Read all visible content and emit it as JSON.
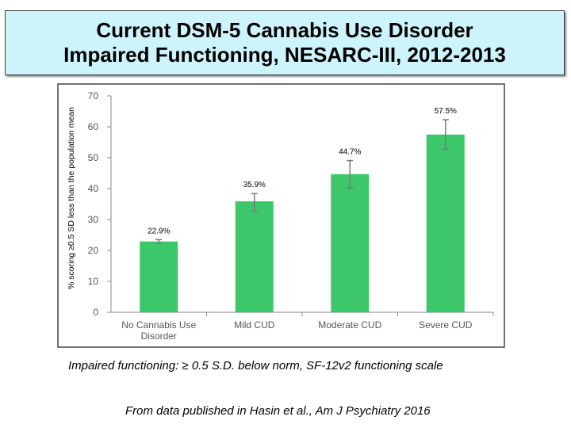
{
  "header": {
    "title_line1": "Current DSM-5 Cannabis Use Disorder",
    "title_line2": "Impaired Functioning, NESARC-III, 2012-2013"
  },
  "chart_data": {
    "type": "bar",
    "ylabel": "% scoring ≥0.5 SD less than the population mean",
    "ylim": [
      0,
      70
    ],
    "yticks": [
      "0",
      "10",
      "20",
      "30",
      "40",
      "50",
      "60",
      "70"
    ],
    "categories": [
      [
        "No Cannabis Use",
        "Disorder"
      ],
      [
        "Mild CUD"
      ],
      [
        "Moderate CUD"
      ],
      [
        "Severe CUD"
      ]
    ],
    "values": [
      22.9,
      35.9,
      44.7,
      57.5
    ],
    "data_labels": [
      "22.9%",
      "35.9%",
      "44.7%",
      "57.5%"
    ],
    "error_bars": [
      [
        22.3,
        23.5
      ],
      [
        32.7,
        38.4
      ],
      [
        40.3,
        49.1
      ],
      [
        52.8,
        62.3
      ]
    ],
    "bar_color": "#3cc86a",
    "error_bar_color": "#7a7a7a",
    "grid": false
  },
  "footer": {
    "caption": "Impaired functioning:  ≥ 0.5 S.D. below norm, SF-12v2 functioning scale",
    "source": "From data published in Hasin et al., Am J Psychiatry 2016"
  }
}
